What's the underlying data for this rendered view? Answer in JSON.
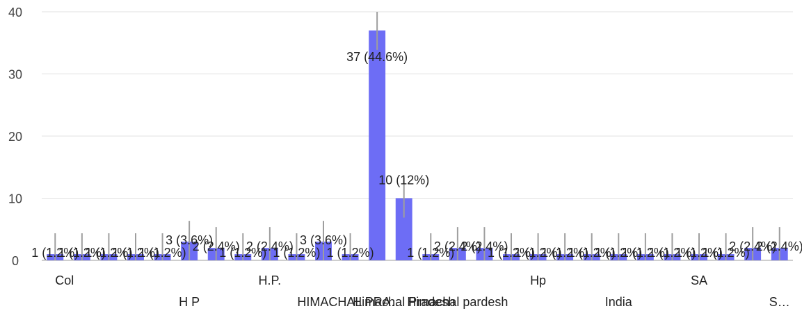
{
  "colors": {
    "bar": "#6d6df5",
    "grid": "#e0e0e0",
    "axis": "#9e9e9e",
    "errbar": "#9e9e9e"
  },
  "chart_data": {
    "type": "bar",
    "ylim": [
      0,
      40
    ],
    "yticks": [
      0,
      10,
      20,
      30,
      40
    ],
    "grid": true,
    "categories": [
      "Col",
      "",
      "",
      "",
      "",
      "H P",
      "",
      "",
      "H.P.",
      "",
      "",
      "HIMACHAL PRA…",
      "",
      "Himachal Pradesh",
      "",
      "Himachal pardesh",
      "",
      "",
      "Hp",
      "",
      "",
      "India",
      "",
      "",
      "SA",
      "",
      "",
      "S…"
    ],
    "values": [
      1,
      1,
      1,
      1,
      1,
      3,
      2,
      1,
      2,
      1,
      3,
      1,
      37,
      10,
      1,
      2,
      2,
      1,
      1,
      1,
      1,
      1,
      1,
      1,
      1,
      1,
      2,
      2
    ],
    "data_labels": [
      "1 (1.2%)",
      "1 (1.2%)",
      "1 (1.2%)",
      "1 (1.2%)",
      "1 (1.2%)",
      "3 (3.6%)",
      "2 (2.4%)",
      "1 (1.2%)",
      "2 (2.4%)",
      "1 (1.2%)",
      "3 (3.6%)",
      "1 (1.2%)",
      "37 (44.6%)",
      "10 (12%)",
      "1 (1.2%)",
      "2 (2.4%)",
      "2 (2.4%)",
      "1 (1.2%)",
      "1 (1.2%)",
      "1 (1.2%)",
      "1 (1.2%)",
      "1 (1.2%)",
      "1 (1.2%)",
      "1 (1.2%)",
      "1 (1.2%)",
      "1 (1.2%)",
      "2 (2.4%)",
      "2 (2.4%)"
    ]
  }
}
